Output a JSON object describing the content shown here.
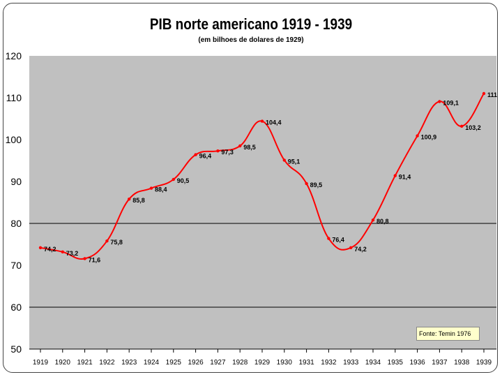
{
  "chart_data": {
    "type": "line",
    "title": "PIB norte americano  1919 - 1939",
    "subtitle": "(em bilhoes de dolares de 1929)",
    "xlabel": "",
    "ylabel": "",
    "x": [
      1919,
      1920,
      1921,
      1922,
      1923,
      1924,
      1925,
      1926,
      1927,
      1928,
      1929,
      1930,
      1931,
      1932,
      1933,
      1934,
      1935,
      1936,
      1937,
      1938,
      1939
    ],
    "data_labels": [
      "74,2",
      "73,2",
      "71,6",
      "75,8",
      "85,8",
      "88,4",
      "90,5",
      "96,4",
      "97,3",
      "98,5",
      "104,4",
      "95,1",
      "89,5",
      "76,4",
      "74,2",
      "80,8",
      "91,4",
      "100,9",
      "109,1",
      "103,2",
      "111"
    ],
    "series": [
      {
        "values": [
          74.2,
          73.2,
          71.6,
          75.8,
          85.8,
          88.4,
          90.5,
          96.4,
          97.3,
          98.5,
          104.4,
          95.1,
          89.5,
          76.4,
          74.2,
          80.8,
          91.4,
          100.9,
          109.1,
          103.2,
          111
        ],
        "color": "#ff0000"
      }
    ],
    "ylim": [
      50,
      120
    ],
    "yticks": [
      50,
      60,
      70,
      80,
      90,
      100,
      110,
      120
    ],
    "gridlines": [
      60,
      80
    ],
    "plot_background": "#c0c0c0",
    "source_note": "Fonte: Temin 1976"
  }
}
